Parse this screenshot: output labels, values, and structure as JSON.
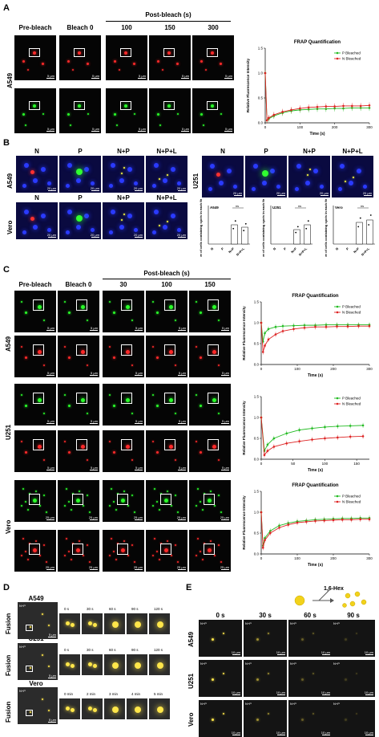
{
  "panelA": {
    "letter": "A",
    "headers": [
      "Pre-bleach",
      "Bleach 0"
    ],
    "post_label": "Post-bleach (s)",
    "post_times": [
      "100",
      "150",
      "300"
    ],
    "row_label": "A549",
    "scalebar": "5 μm",
    "chart_title": "FRAP Quantification",
    "chart_ylabel": "Relative Fluorescence Intensity",
    "chart_xlabel": "Time (s)",
    "legend": [
      "P Bleached",
      "N Bleached"
    ]
  },
  "panelB": {
    "letter": "B",
    "headers_left": [
      "N",
      "P",
      "N+P",
      "N+P+L"
    ],
    "headers_right": [
      "N",
      "P",
      "N+P",
      "N+P+L"
    ],
    "rows_left": [
      "A549",
      "Vero"
    ],
    "row_right": "U251",
    "scalebar": "20 μm",
    "bar_ylabel": "Number of cells containing spots in each field of view",
    "bar_titles": [
      "A549",
      "U251",
      "Vero"
    ],
    "ns": "ns",
    "bar_categories": [
      "N",
      "P",
      "N+P",
      "N+P+L"
    ]
  },
  "panelC": {
    "letter": "C",
    "headers": [
      "Pre-bleach",
      "Bleach 0"
    ],
    "post_label": "Post-bleach (s)",
    "post_times": [
      "30",
      "100",
      "150"
    ],
    "rows": [
      "A549",
      "U251",
      "Vero"
    ],
    "scalebar_small": "5 μm",
    "scalebar_large": "25 μm",
    "chart_title": "FRAP Quantification",
    "chart_ylabel": "Relative Fluorescence Intensity",
    "chart_xlabel": "Time (s)",
    "legend": [
      "P Bleached",
      "N Bleached"
    ]
  },
  "panelD": {
    "letter": "D",
    "rows": [
      "A549",
      "U251",
      "Vero"
    ],
    "side_label": "Fusion",
    "tag": "N+P",
    "times_s": [
      "0 s",
      "30 s",
      "60 s",
      "90 s",
      "120 s"
    ],
    "times_min": [
      "0 min",
      "2 min",
      "3 min",
      "4 min",
      "5 min"
    ],
    "scalebar": "5 μm"
  },
  "panelE": {
    "letter": "E",
    "hex_label": "1,6-Hex",
    "times": [
      "0 s",
      "30 s",
      "60 s",
      "90 s"
    ],
    "rows": [
      "A549",
      "U251",
      "Vero"
    ],
    "tag": "N+P",
    "scalebar": "10 μm"
  },
  "chart_data": [
    {
      "type": "line",
      "title": "FRAP Quantification",
      "xlabel": "Time (s)",
      "ylabel": "Relative Fluorescence Intensity",
      "xlim": [
        0,
        300
      ],
      "ylim": [
        0,
        1.5
      ],
      "x": [
        0,
        5,
        10,
        25,
        50,
        75,
        100,
        125,
        150,
        175,
        200,
        225,
        250,
        275,
        300
      ],
      "series": [
        {
          "name": "P Bleached",
          "color": "#22bb22",
          "values": [
            1.0,
            0.05,
            0.08,
            0.14,
            0.2,
            0.24,
            0.26,
            0.27,
            0.28,
            0.28,
            0.29,
            0.29,
            0.3,
            0.3,
            0.3
          ]
        },
        {
          "name": "N Bleached",
          "color": "#dd2222",
          "values": [
            1.0,
            0.05,
            0.1,
            0.16,
            0.22,
            0.26,
            0.29,
            0.31,
            0.32,
            0.33,
            0.33,
            0.34,
            0.34,
            0.34,
            0.35
          ]
        }
      ]
    },
    {
      "type": "line",
      "title": "FRAP Quantification",
      "xlabel": "Time (s)",
      "ylabel": "Relative Fluorescence Intensity",
      "xlim": [
        0,
        300
      ],
      "ylim": [
        0,
        1.5
      ],
      "x": [
        0,
        5,
        10,
        20,
        40,
        60,
        90,
        120,
        150,
        180,
        210,
        240,
        270,
        300
      ],
      "series": [
        {
          "name": "P Bleached",
          "color": "#22bb22",
          "values": [
            1.0,
            0.55,
            0.75,
            0.85,
            0.9,
            0.92,
            0.93,
            0.94,
            0.94,
            0.95,
            0.95,
            0.95,
            0.95,
            0.95
          ]
        },
        {
          "name": "N Bleached",
          "color": "#dd2222",
          "values": [
            1.0,
            0.3,
            0.45,
            0.6,
            0.72,
            0.8,
            0.85,
            0.88,
            0.9,
            0.9,
            0.91,
            0.91,
            0.92,
            0.92
          ]
        }
      ]
    },
    {
      "type": "line",
      "title": "",
      "xlabel": "Time (s)",
      "ylabel": "Relative Fluorescence Intensity",
      "xlim": [
        0,
        170
      ],
      "ylim": [
        0,
        1.5
      ],
      "x": [
        0,
        5,
        10,
        20,
        40,
        60,
        80,
        100,
        120,
        140,
        160
      ],
      "series": [
        {
          "name": "P Bleached",
          "color": "#22bb22",
          "values": [
            1.0,
            0.2,
            0.35,
            0.5,
            0.62,
            0.7,
            0.74,
            0.77,
            0.79,
            0.8,
            0.81
          ]
        },
        {
          "name": "N Bleached",
          "color": "#dd2222",
          "values": [
            1.0,
            0.1,
            0.2,
            0.3,
            0.38,
            0.43,
            0.47,
            0.5,
            0.52,
            0.54,
            0.55
          ]
        }
      ]
    },
    {
      "type": "line",
      "title": "FRAP Quantification",
      "xlabel": "Time (s)",
      "ylabel": "Relative Fluorescence Intensity",
      "xlim": [
        0,
        300
      ],
      "ylim": [
        0,
        1.5
      ],
      "x": [
        0,
        5,
        10,
        25,
        50,
        75,
        100,
        125,
        150,
        175,
        200,
        225,
        250,
        275,
        300
      ],
      "series": [
        {
          "name": "P Bleached",
          "color": "#22bb22",
          "values": [
            1.0,
            0.2,
            0.38,
            0.55,
            0.68,
            0.74,
            0.78,
            0.8,
            0.82,
            0.83,
            0.84,
            0.85,
            0.85,
            0.86,
            0.86
          ]
        },
        {
          "name": "N Bleached",
          "color": "#dd2222",
          "values": [
            1.0,
            0.15,
            0.33,
            0.5,
            0.63,
            0.7,
            0.75,
            0.77,
            0.79,
            0.8,
            0.81,
            0.82,
            0.82,
            0.83,
            0.83
          ]
        }
      ]
    },
    {
      "type": "bar",
      "title": "A549",
      "ylabel": "Number of cells containing spots in each field of view",
      "categories": [
        "N",
        "P",
        "N+P",
        "N+P+L"
      ],
      "values": [
        0,
        0,
        4,
        3.5
      ],
      "ylim": [
        0,
        8
      ]
    },
    {
      "type": "bar",
      "title": "U251",
      "ylabel": "Number of cells containing spots in each field of view",
      "categories": [
        "N",
        "P",
        "N+P",
        "N+P+L"
      ],
      "values": [
        0,
        0,
        3,
        4
      ],
      "ylim": [
        0,
        8
      ]
    },
    {
      "type": "bar",
      "title": "Vero",
      "ylabel": "Number of cells containing spots in each field of view",
      "categories": [
        "N",
        "P",
        "N+P",
        "N+P+L"
      ],
      "values": [
        0,
        0,
        4.5,
        5
      ],
      "ylim": [
        0,
        8
      ]
    }
  ]
}
